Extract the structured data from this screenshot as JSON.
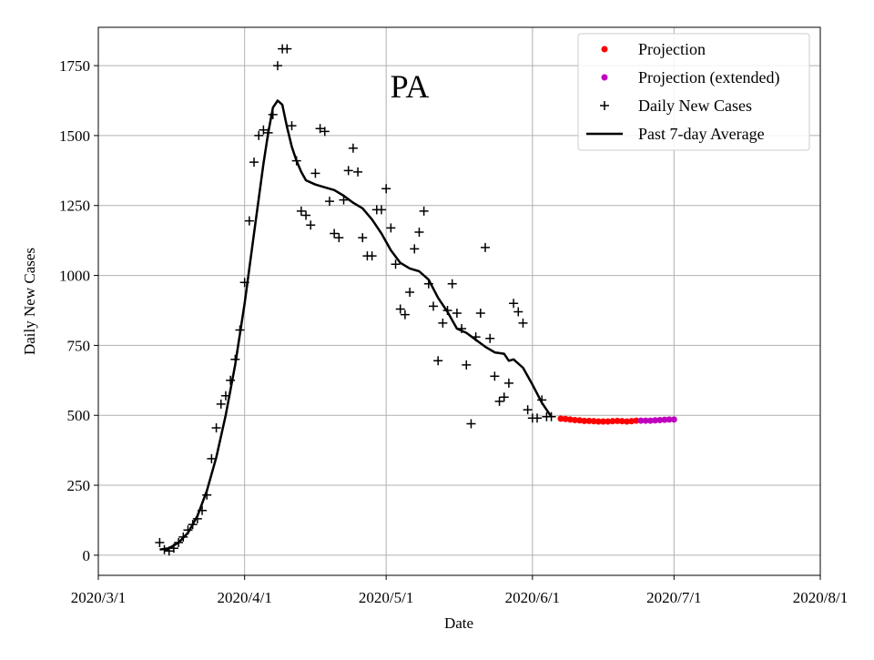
{
  "chart_data": {
    "type": "scatter",
    "title": "PA",
    "xlabel": "Date",
    "ylabel": "Daily New Cases",
    "x_unit": "days since 2020/3/1",
    "xlim": [
      0,
      153
    ],
    "ylim": [
      -72,
      1887
    ],
    "grid": true,
    "legend_placement": "top-right",
    "x_ticks": [
      {
        "day": 0,
        "label": "2020/3/1"
      },
      {
        "day": 31,
        "label": "2020/4/1"
      },
      {
        "day": 61,
        "label": "2020/5/1"
      },
      {
        "day": 92,
        "label": "2020/6/1"
      },
      {
        "day": 122,
        "label": "2020/7/1"
      },
      {
        "day": 153,
        "label": "2020/8/1"
      }
    ],
    "y_ticks": [
      0,
      250,
      500,
      750,
      1000,
      1250,
      1500,
      1750
    ],
    "legend": [
      {
        "label": "Projection",
        "kind": "dot",
        "color": "#ff0000"
      },
      {
        "label": "Projection (extended)",
        "kind": "dot",
        "color": "#bf00bf"
      },
      {
        "label": "Daily New Cases",
        "kind": "plus",
        "color": "#000000"
      },
      {
        "label": "Past 7-day Average",
        "kind": "line",
        "color": "#000000"
      }
    ],
    "series": [
      {
        "name": "Daily New Cases",
        "kind": "plus",
        "color": "#000000",
        "start_day": 13,
        "values": [
          45,
          20,
          15,
          25,
          45,
          65,
          90,
          110,
          130,
          160,
          215,
          345,
          455,
          540,
          570,
          625,
          700,
          805,
          975,
          1195,
          1405,
          1500,
          1520,
          1510,
          1575,
          1750,
          1810,
          1810,
          1535,
          1410,
          1230,
          1215,
          1180,
          1365,
          1525,
          1515,
          1265,
          1150,
          1135,
          1270,
          1375,
          1455,
          1370,
          1135,
          1070,
          1070,
          1235,
          1235,
          1310,
          1170,
          1040,
          880,
          860,
          940,
          1095,
          1155,
          1230,
          970,
          890,
          695,
          830,
          875,
          970,
          865,
          810,
          680,
          470,
          780,
          865,
          1100,
          775,
          640,
          550,
          565,
          615,
          900,
          870,
          830,
          520,
          490,
          490,
          555,
          495,
          495
        ]
      },
      {
        "name": "Past 7-day Average",
        "kind": "line",
        "color": "#000000",
        "points": [
          [
            13,
            20
          ],
          [
            15,
            25
          ],
          [
            17,
            45
          ],
          [
            19,
            80
          ],
          [
            21,
            140
          ],
          [
            23,
            230
          ],
          [
            25,
            350
          ],
          [
            27,
            500
          ],
          [
            29,
            680
          ],
          [
            31,
            900
          ],
          [
            33,
            1150
          ],
          [
            35,
            1400
          ],
          [
            36,
            1510
          ],
          [
            37,
            1600
          ],
          [
            38,
            1625
          ],
          [
            39,
            1610
          ],
          [
            40,
            1530
          ],
          [
            41,
            1460
          ],
          [
            42,
            1410
          ],
          [
            43,
            1370
          ],
          [
            44,
            1340
          ],
          [
            46,
            1325
          ],
          [
            48,
            1315
          ],
          [
            50,
            1305
          ],
          [
            52,
            1285
          ],
          [
            54,
            1260
          ],
          [
            56,
            1240
          ],
          [
            58,
            1200
          ],
          [
            60,
            1150
          ],
          [
            62,
            1090
          ],
          [
            64,
            1045
          ],
          [
            66,
            1025
          ],
          [
            68,
            1015
          ],
          [
            70,
            985
          ],
          [
            72,
            920
          ],
          [
            74,
            870
          ],
          [
            76,
            810
          ],
          [
            78,
            795
          ],
          [
            80,
            770
          ],
          [
            82,
            745
          ],
          [
            84,
            725
          ],
          [
            86,
            720
          ],
          [
            87,
            695
          ],
          [
            88,
            700
          ],
          [
            90,
            670
          ],
          [
            92,
            610
          ],
          [
            94,
            545
          ],
          [
            96,
            495
          ]
        ]
      },
      {
        "name": "Projection",
        "kind": "dot",
        "color": "#ff0000",
        "start_day": 98,
        "values": [
          488,
          487,
          485,
          483,
          482,
          480,
          480,
          479,
          478,
          478,
          478,
          479,
          480,
          479,
          478,
          479,
          481
        ]
      },
      {
        "name": "Projection (extended)",
        "kind": "dot",
        "color": "#bf00bf",
        "start_day": 115,
        "values": [
          481,
          481,
          481,
          482,
          483,
          484,
          485,
          485
        ]
      }
    ]
  }
}
